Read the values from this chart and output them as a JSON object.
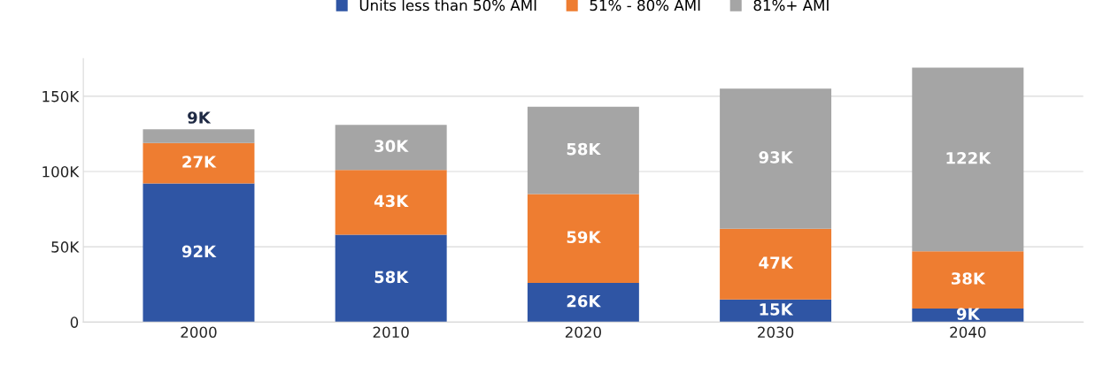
{
  "chart_data": {
    "type": "bar",
    "stacked": true,
    "categories": [
      "2000",
      "2010",
      "2020",
      "2030",
      "2040"
    ],
    "series": [
      {
        "name": "Units less than 50% AMI",
        "color": "#2f55a4",
        "values": [
          92,
          58,
          26,
          15,
          9
        ],
        "value_labels": [
          "92K",
          "58K",
          "26K",
          "15K",
          "9K"
        ]
      },
      {
        "name": "51% - 80% AMI",
        "color": "#ee7d31",
        "values": [
          27,
          43,
          59,
          47,
          38
        ],
        "value_labels": [
          "27K",
          "43K",
          "59K",
          "47K",
          "38K"
        ]
      },
      {
        "name": "81%+ AMI",
        "color": "#a5a5a5",
        "values": [
          9,
          30,
          58,
          93,
          122
        ],
        "value_labels": [
          "9K",
          "30K",
          "58K",
          "93K",
          "122K"
        ]
      }
    ],
    "ylim": [
      0,
      175
    ],
    "yticks": [
      0,
      {
        "value": 50,
        "label": "50K"
      },
      {
        "value": 100,
        "label": "100K"
      },
      {
        "value": 150,
        "label": "150K"
      }
    ],
    "grid": "y",
    "legend": "top"
  }
}
